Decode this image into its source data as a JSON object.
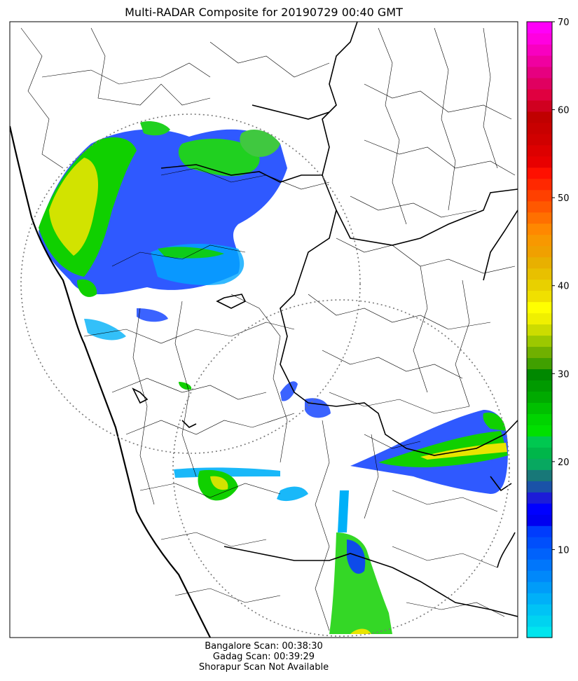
{
  "title": "Multi-RADAR Composite for 20190729 00:40 GMT",
  "colorbar": {
    "ticks": [
      "10",
      "20",
      "30",
      "40",
      "50",
      "60",
      "70"
    ],
    "tick_values": [
      10,
      20,
      30,
      40,
      50,
      60,
      70
    ],
    "range": [
      0,
      70
    ],
    "colors": [
      "#00e5ee",
      "#00d3f0",
      "#00c3f5",
      "#00b0f8",
      "#009cf9",
      "#0088fa",
      "#0076fb",
      "#0062fb",
      "#004ffc",
      "#003cfd",
      "#0000f0",
      "#0000ff",
      "#1c1cd8",
      "#1a52a8",
      "#187878",
      "#08a860",
      "#00b64a",
      "#00c850",
      "#00e000",
      "#00d400",
      "#00c000",
      "#00aa00",
      "#009a00",
      "#008800",
      "#40a000",
      "#70b000",
      "#9cc800",
      "#ccdc00",
      "#f0f000",
      "#ffff00",
      "#f0e000",
      "#e8d000",
      "#e8c000",
      "#e8b000",
      "#f0a000",
      "#f89800",
      "#ff8800",
      "#ff7000",
      "#ff5800",
      "#ff4000",
      "#ff2800",
      "#ff1000",
      "#e80000",
      "#dd0000",
      "#d00000",
      "#c80000",
      "#c00000",
      "#d00020",
      "#e00040",
      "#e00060",
      "#e60080",
      "#f000a0",
      "#f800c0",
      "#ff00e0",
      "#ff00f8"
    ]
  },
  "radars": [
    {
      "name": "Bangalore",
      "label": "Bangalore Scan: 00:38:30"
    },
    {
      "name": "Gadag",
      "label": "Gadag Scan: 00:39:29"
    },
    {
      "name": "Shorapur",
      "label": "Shorapur Scan Not Available"
    }
  ]
}
